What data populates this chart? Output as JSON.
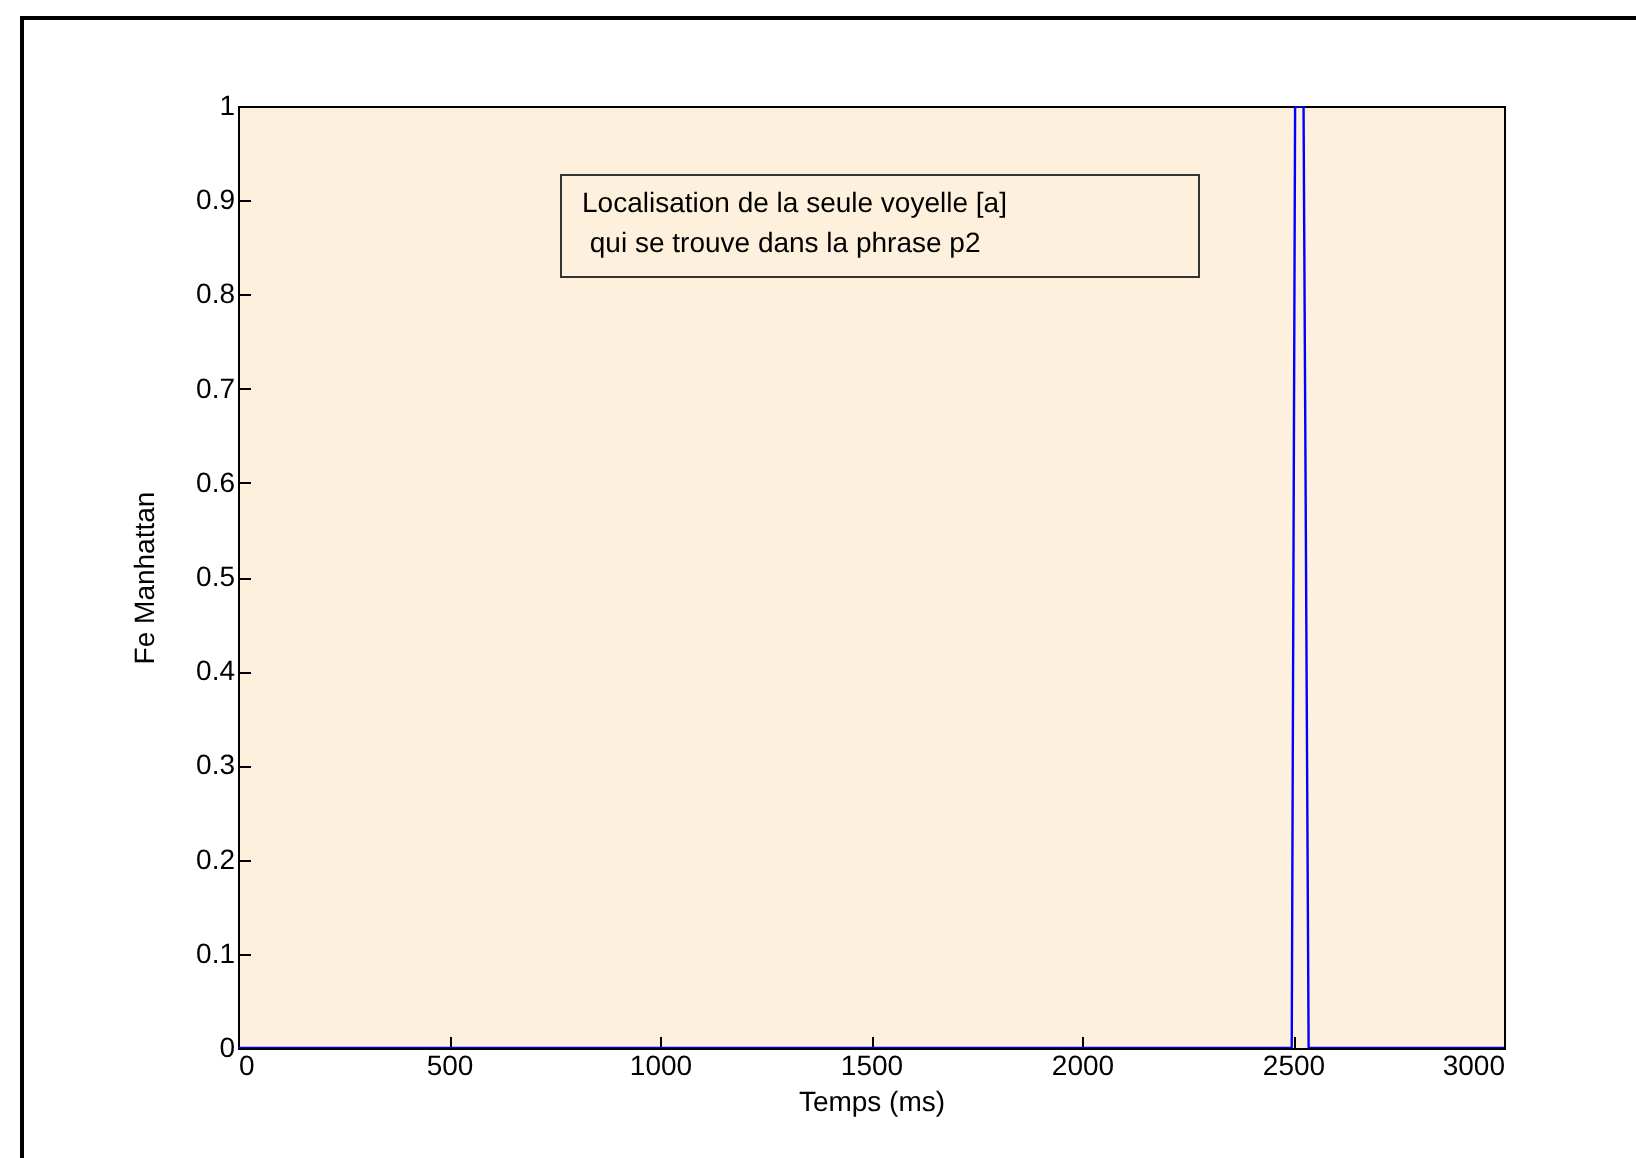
{
  "chart_data": {
    "type": "line",
    "xlabel": "Temps (ms)",
    "ylabel": "Fe Manhattan",
    "annotations": [
      "Localisation de la seule voyelle [a]\n qui se trouve dans la phrase p2"
    ],
    "series": [
      {
        "color": "#0000ff",
        "x": [
          0,
          2497,
          2505,
          2525,
          2537,
          3000
        ],
        "values": [
          0,
          0,
          1,
          1,
          0,
          0
        ]
      }
    ],
    "xlim": [
      0,
      3000
    ],
    "xticks": [
      0,
      500,
      1000,
      1500,
      2000,
      2500,
      3000
    ],
    "ylim": [
      0,
      1
    ],
    "yticks": [
      0,
      0.1,
      0.2,
      0.3,
      0.4,
      0.5,
      0.6,
      0.7,
      0.8,
      0.9,
      1
    ]
  }
}
